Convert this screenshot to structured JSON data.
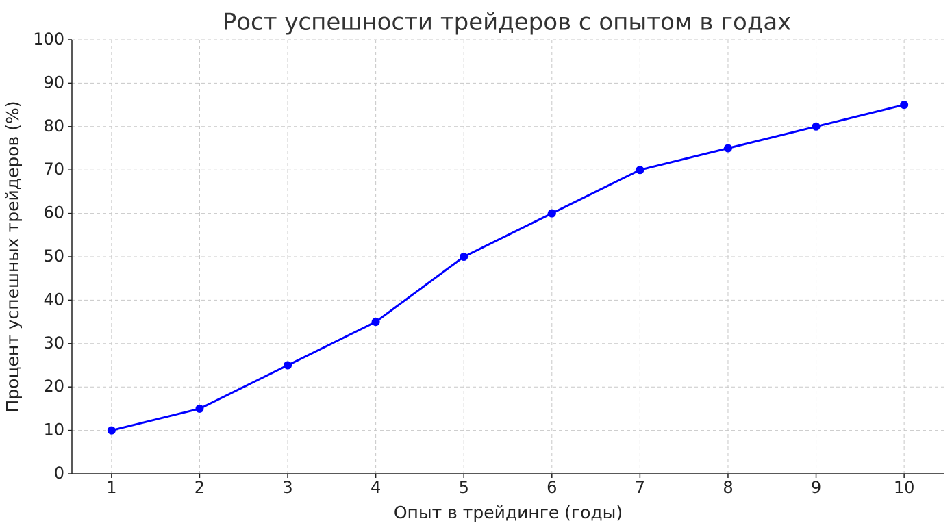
{
  "chart_data": {
    "type": "line",
    "title": "Рост успешности трейдеров с опытом в годах",
    "x_label": "Опыт в трейдинге (годы)",
    "y_label": "Процент успешных трейдеров (%)",
    "x": [
      1,
      2,
      3,
      4,
      5,
      6,
      7,
      8,
      9,
      10
    ],
    "series": [
      {
        "color": "#0000ff",
        "values": [
          10,
          15,
          25,
          35,
          50,
          60,
          70,
          75,
          80,
          85
        ]
      }
    ],
    "xlim": [
      0.55,
      10.45
    ],
    "xticks": [
      1,
      2,
      3,
      4,
      5,
      6,
      7,
      8,
      9,
      10
    ],
    "ylim": [
      0,
      100
    ],
    "yticks": [
      0,
      10,
      20,
      30,
      40,
      50,
      60,
      70,
      80,
      90,
      100
    ],
    "grid": true
  }
}
